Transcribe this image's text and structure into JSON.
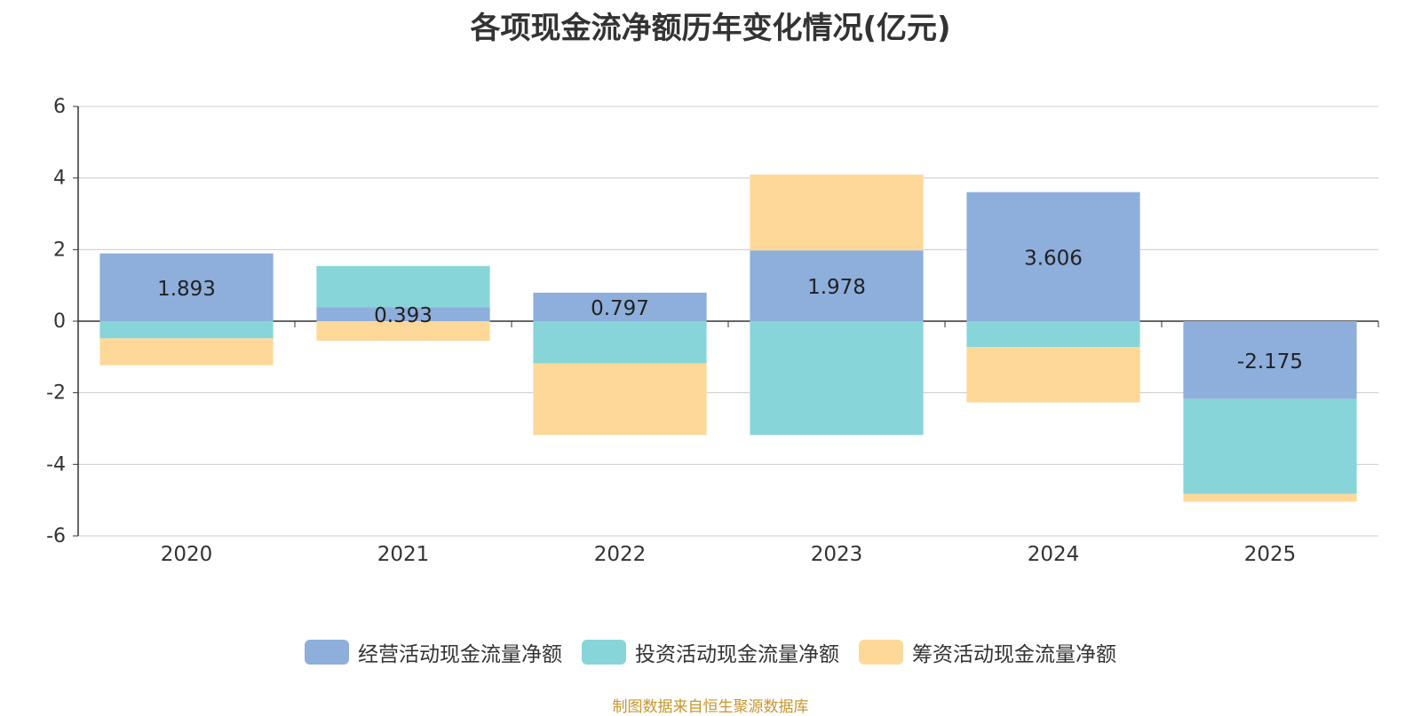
{
  "chart_data": {
    "type": "bar",
    "stacked": true,
    "title": "各项现金流净额历年变化情况(亿元)",
    "categories": [
      "2020",
      "2021",
      "2022",
      "2023",
      "2024",
      "2025"
    ],
    "ylim": [
      -6,
      6
    ],
    "y_ticks": [
      "6",
      "4",
      "2",
      "0",
      "-2",
      "-4",
      "-6"
    ],
    "grid": true,
    "legend_position": "bottom",
    "series": [
      {
        "name": "经营活动现金流量净额",
        "color": "#8eaedb",
        "values": [
          1.893,
          0.393,
          0.797,
          1.978,
          3.606,
          -2.175
        ],
        "labels": [
          "1.893",
          "0.393",
          "0.797",
          "1.978",
          "3.606",
          "-2.175"
        ]
      },
      {
        "name": "投资活动现金流量净额",
        "color": "#87d5d8",
        "values": [
          -0.48,
          1.15,
          -1.18,
          -3.18,
          -0.72,
          -2.65
        ]
      },
      {
        "name": "筹资活动现金流量净额",
        "color": "#fed898",
        "values": [
          -0.75,
          -0.55,
          -2.0,
          2.12,
          -1.55,
          -0.22
        ]
      }
    ]
  },
  "source": "制图数据来自恒生聚源数据库"
}
